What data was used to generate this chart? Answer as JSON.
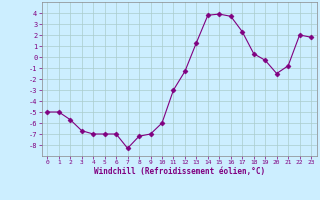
{
  "hours": [
    0,
    1,
    2,
    3,
    4,
    5,
    6,
    7,
    8,
    9,
    10,
    11,
    12,
    13,
    14,
    15,
    16,
    17,
    18,
    19,
    20,
    21,
    22,
    23
  ],
  "values": [
    -5,
    -5,
    -5.7,
    -6.7,
    -7,
    -7,
    -7,
    -8.3,
    -7.2,
    -7,
    -6,
    -3,
    -1.3,
    1.3,
    3.8,
    3.9,
    3.7,
    2.3,
    0.3,
    -0.3,
    -1.5,
    -0.8,
    2.0,
    1.8
  ],
  "line_color": "#800080",
  "marker": "D",
  "marker_size": 2.5,
  "bg_color": "#cceeff",
  "grid_color": "#aacccc",
  "xlabel": "Windchill (Refroidissement éolien,°C)",
  "ylim": [
    -9,
    5
  ],
  "xlim": [
    -0.5,
    23.5
  ],
  "yticks": [
    -8,
    -7,
    -6,
    -5,
    -4,
    -3,
    -2,
    -1,
    0,
    1,
    2,
    3,
    4
  ],
  "xticks": [
    0,
    1,
    2,
    3,
    4,
    5,
    6,
    7,
    8,
    9,
    10,
    11,
    12,
    13,
    14,
    15,
    16,
    17,
    18,
    19,
    20,
    21,
    22,
    23
  ]
}
